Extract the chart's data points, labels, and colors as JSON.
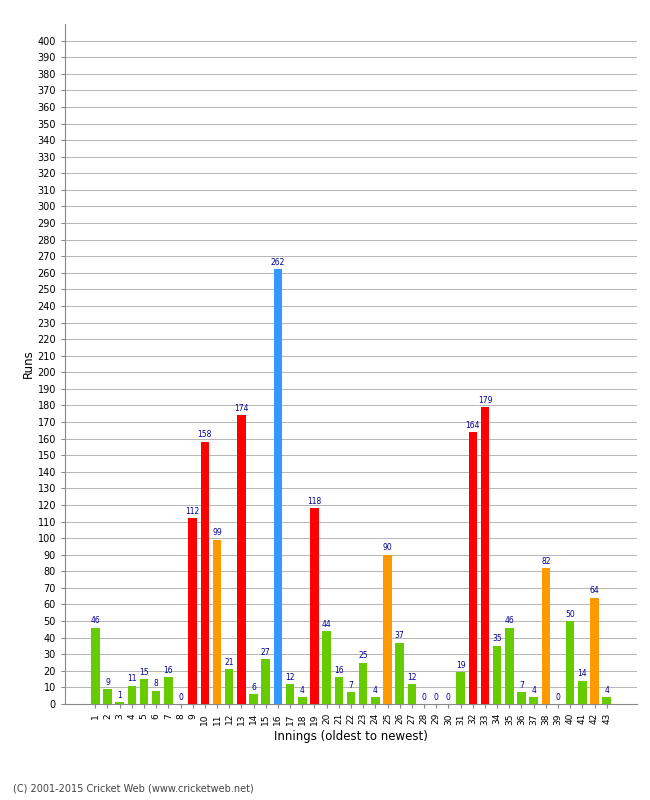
{
  "xlabel": "Innings (oldest to newest)",
  "ylabel": "Runs",
  "yticks": [
    0,
    10,
    20,
    30,
    40,
    50,
    60,
    70,
    80,
    90,
    100,
    110,
    120,
    130,
    140,
    150,
    160,
    170,
    180,
    190,
    200,
    210,
    220,
    230,
    240,
    250,
    260,
    270,
    280,
    290,
    300,
    310,
    320,
    330,
    340,
    350,
    360,
    370,
    380,
    390,
    400
  ],
  "ylim": [
    0,
    410
  ],
  "innings": [
    1,
    2,
    3,
    4,
    5,
    6,
    7,
    8,
    9,
    10,
    11,
    12,
    13,
    14,
    15,
    16,
    17,
    18,
    19,
    20,
    21,
    22,
    23,
    24,
    25,
    26,
    27,
    28,
    29,
    30,
    31,
    32,
    33,
    34,
    35,
    36,
    37,
    38,
    39,
    40,
    41,
    42,
    43
  ],
  "values": [
    46,
    9,
    1,
    11,
    15,
    8,
    16,
    0,
    112,
    158,
    99,
    21,
    174,
    6,
    27,
    262,
    12,
    4,
    118,
    44,
    16,
    7,
    25,
    4,
    90,
    37,
    12,
    0,
    0,
    0,
    19,
    164,
    179,
    35,
    46,
    7,
    4,
    82,
    0,
    50,
    14,
    64,
    4
  ],
  "colors": [
    "#66cc00",
    "#66cc00",
    "#66cc00",
    "#66cc00",
    "#66cc00",
    "#66cc00",
    "#66cc00",
    "#66cc00",
    "#ff0000",
    "#ff0000",
    "#ff9900",
    "#66cc00",
    "#ff0000",
    "#66cc00",
    "#66cc00",
    "#3399ff",
    "#66cc00",
    "#66cc00",
    "#ff0000",
    "#66cc00",
    "#66cc00",
    "#66cc00",
    "#66cc00",
    "#66cc00",
    "#ff9900",
    "#66cc00",
    "#66cc00",
    "#66cc00",
    "#66cc00",
    "#66cc00",
    "#66cc00",
    "#ff0000",
    "#ff0000",
    "#66cc00",
    "#66cc00",
    "#66cc00",
    "#66cc00",
    "#ff9900",
    "#66cc00",
    "#66cc00",
    "#66cc00",
    "#ff9900",
    "#66cc00"
  ],
  "label_color": "#000099",
  "bg_color": "#ffffff",
  "grid_color": "#aaaaaa",
  "copyright": "(C) 2001-2015 Cricket Web (www.cricketweb.net)"
}
